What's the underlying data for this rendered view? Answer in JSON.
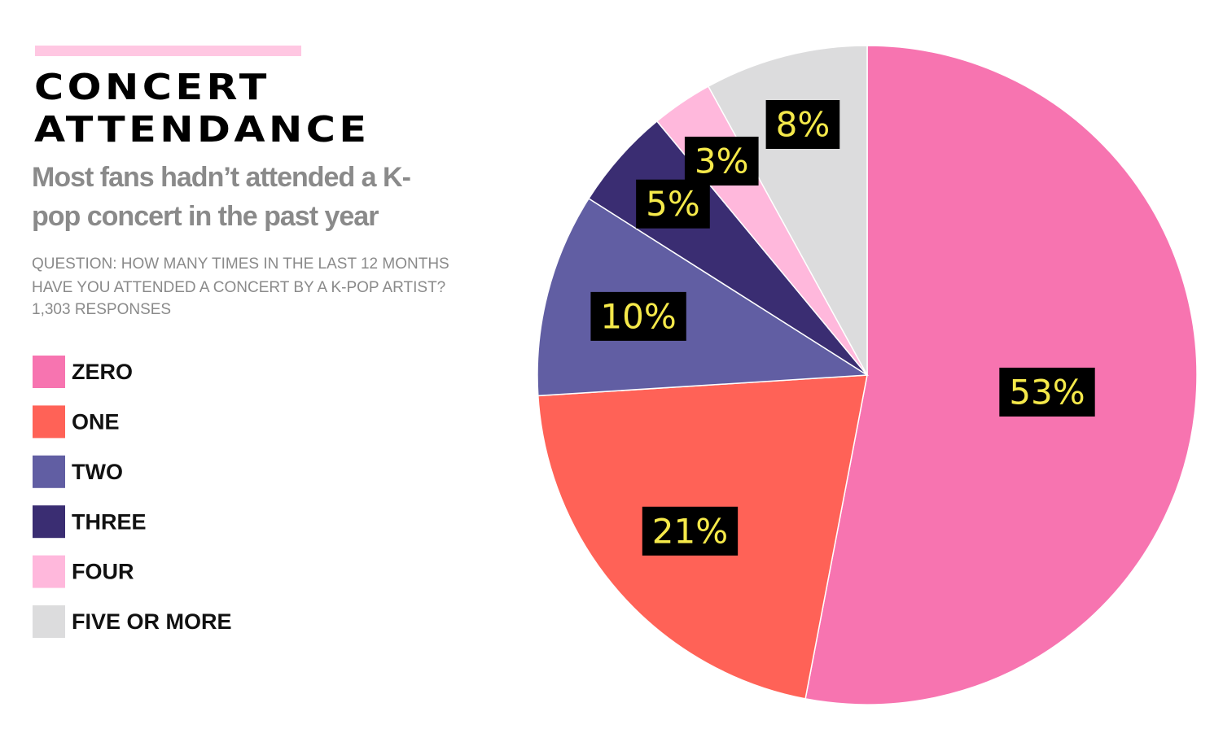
{
  "chart_data": {
    "type": "pie",
    "title": "CONCERT ATTENDANCE",
    "subtitle": "Most fans hadn’t attended a K-pop concert in the past year",
    "question": "QUESTION: HOW MANY TIMES IN THE LAST 12 MONTHS HAVE YOU ATTENDED A CONCERT BY A K-POP ARTIST?",
    "note": "1,303 RESPONSES",
    "categories": [
      "ZERO",
      "ONE",
      "TWO",
      "THREE",
      "FOUR",
      "FIVE OR MORE"
    ],
    "values": [
      53,
      21,
      10,
      5,
      3,
      8
    ],
    "value_labels": [
      "53%",
      "21%",
      "10%",
      "5%",
      "3%",
      "8%"
    ],
    "colors": [
      "#f774b0",
      "#ff6257",
      "#615ea3",
      "#3a2d72",
      "#ffb8dc",
      "#dcdcdd"
    ],
    "legend": "left"
  }
}
